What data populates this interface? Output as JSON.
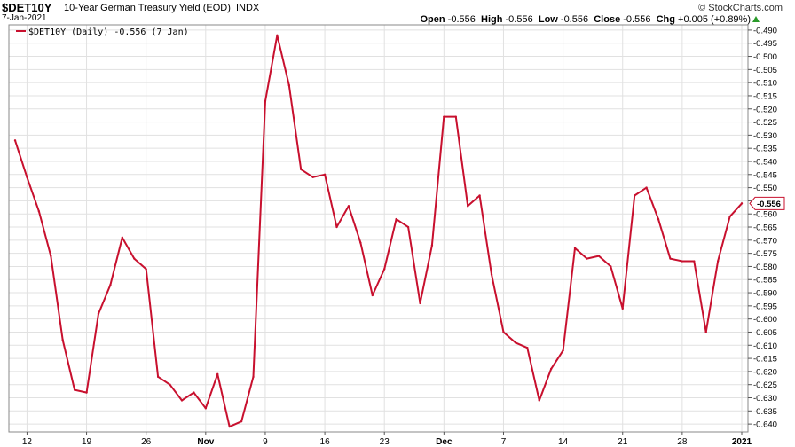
{
  "header": {
    "symbol": "$DET10Y",
    "name": "10-Year German Treasury Yield (EOD)",
    "exchange": "INDX",
    "date": "7-Jan-2021",
    "brand": "© StockCharts.com",
    "open_label": "Open",
    "open": "-0.556",
    "high_label": "High",
    "high": "-0.556",
    "low_label": "Low",
    "low": "-0.556",
    "close_label": "Close",
    "close": "-0.556",
    "chg_label": "Chg",
    "chg": "+0.005 (+0.89%)",
    "chg_direction": "up",
    "chg_color": "#2a9a2a"
  },
  "legend": {
    "text": "$DET10Y (Daily) -0.556 (7 Jan)"
  },
  "chart_data": {
    "type": "line",
    "title": "10-Year German Treasury Yield (EOD)",
    "series": [
      {
        "name": "$DET10Y (Daily)",
        "color": "#c8102e",
        "values": [
          -0.532,
          -0.546,
          -0.559,
          -0.576,
          -0.608,
          -0.627,
          -0.628,
          -0.598,
          -0.587,
          -0.569,
          -0.577,
          -0.581,
          -0.622,
          -0.625,
          -0.631,
          -0.628,
          -0.634,
          -0.621,
          -0.641,
          -0.639,
          -0.622,
          -0.517,
          -0.492,
          -0.511,
          -0.543,
          -0.546,
          -0.545,
          -0.565,
          -0.557,
          -0.571,
          -0.591,
          -0.581,
          -0.562,
          -0.565,
          -0.594,
          -0.572,
          -0.523,
          -0.523,
          -0.557,
          -0.553,
          -0.583,
          -0.605,
          -0.609,
          -0.611,
          -0.631,
          -0.619,
          -0.612,
          -0.573,
          -0.577,
          -0.576,
          -0.58,
          -0.596,
          -0.553,
          -0.55,
          -0.562,
          -0.577,
          -0.578,
          -0.578,
          -0.605,
          -0.578,
          -0.561,
          -0.556
        ]
      }
    ],
    "x_tick_labels": [
      "12",
      "19",
      "26",
      "Nov",
      "9",
      "16",
      "23",
      "Dec",
      "7",
      "14",
      "21",
      "28",
      "2021"
    ],
    "x_tick_indices": [
      1,
      6,
      11,
      16,
      21,
      26,
      31,
      36,
      41,
      46,
      51,
      56,
      61
    ],
    "x_tick_bold": [
      "Nov",
      "Dec",
      "2021"
    ],
    "y_ticks": [
      -0.49,
      -0.495,
      -0.5,
      -0.505,
      -0.51,
      -0.515,
      -0.52,
      -0.525,
      -0.53,
      -0.535,
      -0.54,
      -0.545,
      -0.55,
      -0.555,
      -0.56,
      -0.565,
      -0.57,
      -0.575,
      -0.58,
      -0.585,
      -0.59,
      -0.595,
      -0.6,
      -0.605,
      -0.61,
      -0.615,
      -0.62,
      -0.625,
      -0.63,
      -0.635,
      -0.64
    ],
    "y_tick_labels": [
      "-0.490",
      "-0.495",
      "-0.500",
      "-0.505",
      "-0.510",
      "-0.515",
      "-0.520",
      "-0.525",
      "-0.530",
      "-0.535",
      "-0.540",
      "-0.545",
      "-0.550",
      "-0.555",
      "-0.560",
      "-0.565",
      "-0.570",
      "-0.575",
      "-0.580",
      "-0.585",
      "-0.590",
      "-0.595",
      "-0.600",
      "-0.605",
      "-0.610",
      "-0.615",
      "-0.620",
      "-0.625",
      "-0.630",
      "-0.635",
      "-0.640"
    ],
    "ylim": [
      -0.643,
      -0.488
    ],
    "y_axis_side": "right",
    "last_value": -0.556,
    "last_value_label": "-0.556",
    "grid": true,
    "legend_position": "top-left"
  }
}
